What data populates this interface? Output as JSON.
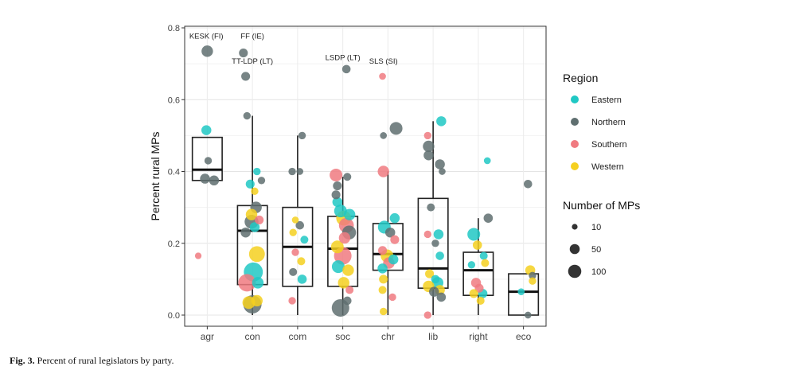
{
  "figure": {
    "caption_label": "Fig. 3.",
    "caption_text": "Percent of rural legislators by party."
  },
  "chart_data": {
    "type": "box+jitter",
    "title": "",
    "xlabel": "",
    "ylabel": "Percent rural MPs",
    "ylim": [
      0,
      0.8
    ],
    "yticks": [
      0.0,
      0.2,
      0.4,
      0.6,
      0.8
    ],
    "ytick_labels": [
      "0.0",
      "0.2",
      "0.4",
      "0.6",
      "0.8"
    ],
    "grid": true,
    "categories": [
      "agr",
      "con",
      "com",
      "soc",
      "chr",
      "lib",
      "right",
      "eco"
    ],
    "colors": {
      "Eastern": "#20c8c4",
      "Northern": "#5f6f70",
      "Southern": "#f07a80",
      "Western": "#f5d020"
    },
    "legend_region": {
      "title": "Region",
      "entries": [
        {
          "label": "Eastern",
          "color": "#20c8c4"
        },
        {
          "label": "Northern",
          "color": "#5f6f70"
        },
        {
          "label": "Southern",
          "color": "#f07a80"
        },
        {
          "label": "Western",
          "color": "#f5d020"
        }
      ]
    },
    "legend_size": {
      "title": "Number of MPs",
      "entries": [
        {
          "label": "10",
          "value": 10
        },
        {
          "label": "50",
          "value": 50
        },
        {
          "label": "100",
          "value": 100
        }
      ]
    },
    "boxes": [
      {
        "category": "agr",
        "q1": 0.375,
        "median": 0.405,
        "q3": 0.495,
        "lo": 0.375,
        "hi": 0.495
      },
      {
        "category": "con",
        "q1": 0.085,
        "median": 0.235,
        "q3": 0.305,
        "lo": 0.0,
        "hi": 0.555
      },
      {
        "category": "com",
        "q1": 0.08,
        "median": 0.19,
        "q3": 0.3,
        "lo": 0.0,
        "hi": 0.5
      },
      {
        "category": "soc",
        "q1": 0.08,
        "median": 0.185,
        "q3": 0.275,
        "lo": 0.0,
        "hi": 0.385
      },
      {
        "category": "chr",
        "q1": 0.125,
        "median": 0.17,
        "q3": 0.255,
        "lo": 0.0,
        "hi": 0.4
      },
      {
        "category": "lib",
        "q1": 0.075,
        "median": 0.13,
        "q3": 0.325,
        "lo": 0.0,
        "hi": 0.54
      },
      {
        "category": "right",
        "q1": 0.055,
        "median": 0.125,
        "q3": 0.175,
        "lo": 0.0,
        "hi": 0.27
      },
      {
        "category": "eco",
        "q1": 0.0,
        "median": 0.065,
        "q3": 0.115,
        "lo": 0.0,
        "hi": 0.115
      }
    ],
    "points": [
      {
        "category": "agr",
        "dx": 0.0,
        "y": 0.735,
        "region": "Northern",
        "mps": 30
      },
      {
        "category": "agr",
        "dx": -0.02,
        "y": 0.515,
        "region": "Eastern",
        "mps": 20
      },
      {
        "category": "agr",
        "dx": 0.02,
        "y": 0.43,
        "region": "Northern",
        "mps": 8
      },
      {
        "category": "agr",
        "dx": -0.05,
        "y": 0.38,
        "region": "Northern",
        "mps": 20
      },
      {
        "category": "agr",
        "dx": 0.15,
        "y": 0.375,
        "region": "Northern",
        "mps": 20
      },
      {
        "category": "agr",
        "dx": -0.2,
        "y": 0.165,
        "region": "Southern",
        "mps": 5
      },
      {
        "category": "con",
        "dx": -0.2,
        "y": 0.73,
        "region": "Northern",
        "mps": 14
      },
      {
        "category": "con",
        "dx": -0.15,
        "y": 0.665,
        "region": "Northern",
        "mps": 14
      },
      {
        "category": "con",
        "dx": -0.12,
        "y": 0.555,
        "region": "Northern",
        "mps": 8
      },
      {
        "category": "con",
        "dx": 0.1,
        "y": 0.4,
        "region": "Eastern",
        "mps": 8
      },
      {
        "category": "con",
        "dx": 0.2,
        "y": 0.375,
        "region": "Northern",
        "mps": 8
      },
      {
        "category": "con",
        "dx": -0.05,
        "y": 0.365,
        "region": "Eastern",
        "mps": 14
      },
      {
        "category": "con",
        "dx": 0.05,
        "y": 0.345,
        "region": "Western",
        "mps": 8
      },
      {
        "category": "con",
        "dx": 0.08,
        "y": 0.3,
        "region": "Northern",
        "mps": 30
      },
      {
        "category": "con",
        "dx": -0.02,
        "y": 0.28,
        "region": "Western",
        "mps": 30
      },
      {
        "category": "con",
        "dx": 0.15,
        "y": 0.265,
        "region": "Southern",
        "mps": 14
      },
      {
        "category": "con",
        "dx": -0.02,
        "y": 0.26,
        "region": "Northern",
        "mps": 50
      },
      {
        "category": "con",
        "dx": 0.05,
        "y": 0.245,
        "region": "Eastern",
        "mps": 20
      },
      {
        "category": "con",
        "dx": -0.15,
        "y": 0.23,
        "region": "Northern",
        "mps": 20
      },
      {
        "category": "con",
        "dx": 0.1,
        "y": 0.17,
        "region": "Western",
        "mps": 70
      },
      {
        "category": "con",
        "dx": 0.02,
        "y": 0.12,
        "region": "Eastern",
        "mps": 110
      },
      {
        "category": "con",
        "dx": -0.12,
        "y": 0.09,
        "region": "Southern",
        "mps": 90
      },
      {
        "category": "con",
        "dx": 0.12,
        "y": 0.09,
        "region": "Eastern",
        "mps": 30
      },
      {
        "category": "con",
        "dx": -0.08,
        "y": 0.035,
        "region": "Western",
        "mps": 40
      },
      {
        "category": "con",
        "dx": 0.0,
        "y": 0.03,
        "region": "Northern",
        "mps": 100
      },
      {
        "category": "con",
        "dx": 0.1,
        "y": 0.04,
        "region": "Western",
        "mps": 30
      },
      {
        "category": "com",
        "dx": 0.1,
        "y": 0.5,
        "region": "Northern",
        "mps": 8
      },
      {
        "category": "com",
        "dx": -0.12,
        "y": 0.4,
        "region": "Northern",
        "mps": 8
      },
      {
        "category": "com",
        "dx": 0.05,
        "y": 0.4,
        "region": "Northern",
        "mps": 6
      },
      {
        "category": "com",
        "dx": -0.05,
        "y": 0.265,
        "region": "Western",
        "mps": 6
      },
      {
        "category": "com",
        "dx": 0.05,
        "y": 0.25,
        "region": "Northern",
        "mps": 12
      },
      {
        "category": "com",
        "dx": -0.1,
        "y": 0.23,
        "region": "Western",
        "mps": 8
      },
      {
        "category": "com",
        "dx": 0.15,
        "y": 0.21,
        "region": "Eastern",
        "mps": 10
      },
      {
        "category": "com",
        "dx": -0.05,
        "y": 0.175,
        "region": "Southern",
        "mps": 8
      },
      {
        "category": "com",
        "dx": 0.08,
        "y": 0.15,
        "region": "Western",
        "mps": 10
      },
      {
        "category": "com",
        "dx": -0.1,
        "y": 0.12,
        "region": "Northern",
        "mps": 10
      },
      {
        "category": "com",
        "dx": 0.1,
        "y": 0.1,
        "region": "Eastern",
        "mps": 16
      },
      {
        "category": "com",
        "dx": -0.12,
        "y": 0.04,
        "region": "Southern",
        "mps": 8
      },
      {
        "category": "soc",
        "dx": 0.1,
        "y": 0.385,
        "region": "Northern",
        "mps": 10
      },
      {
        "category": "soc",
        "dx": -0.15,
        "y": 0.39,
        "region": "Southern",
        "mps": 40
      },
      {
        "category": "soc",
        "dx": -0.12,
        "y": 0.36,
        "region": "Northern",
        "mps": 14
      },
      {
        "category": "soc",
        "dx": -0.15,
        "y": 0.335,
        "region": "Northern",
        "mps": 14
      },
      {
        "category": "soc",
        "dx": -0.12,
        "y": 0.315,
        "region": "Eastern",
        "mps": 20
      },
      {
        "category": "soc",
        "dx": -0.05,
        "y": 0.29,
        "region": "Eastern",
        "mps": 40
      },
      {
        "category": "soc",
        "dx": 0.15,
        "y": 0.28,
        "region": "Eastern",
        "mps": 30
      },
      {
        "category": "soc",
        "dx": 0.02,
        "y": 0.27,
        "region": "Western",
        "mps": 60
      },
      {
        "category": "soc",
        "dx": 0.08,
        "y": 0.25,
        "region": "Southern",
        "mps": 60
      },
      {
        "category": "soc",
        "dx": 0.14,
        "y": 0.23,
        "region": "Northern",
        "mps": 50
      },
      {
        "category": "soc",
        "dx": 0.04,
        "y": 0.215,
        "region": "Southern",
        "mps": 30
      },
      {
        "category": "soc",
        "dx": -0.12,
        "y": 0.19,
        "region": "Western",
        "mps": 40
      },
      {
        "category": "soc",
        "dx": 0.0,
        "y": 0.165,
        "region": "Southern",
        "mps": 90
      },
      {
        "category": "soc",
        "dx": -0.1,
        "y": 0.135,
        "region": "Eastern",
        "mps": 40
      },
      {
        "category": "soc",
        "dx": 0.12,
        "y": 0.125,
        "region": "Western",
        "mps": 30
      },
      {
        "category": "soc",
        "dx": 0.02,
        "y": 0.09,
        "region": "Western",
        "mps": 30
      },
      {
        "category": "soc",
        "dx": 0.15,
        "y": 0.07,
        "region": "Southern",
        "mps": 10
      },
      {
        "category": "soc",
        "dx": 0.1,
        "y": 0.04,
        "region": "Northern",
        "mps": 12
      },
      {
        "category": "soc",
        "dx": -0.05,
        "y": 0.02,
        "region": "Northern",
        "mps": 90
      },
      {
        "category": "soc",
        "dx": 0.08,
        "y": 0.685,
        "region": "Northern",
        "mps": 12
      },
      {
        "category": "chr",
        "dx": -0.12,
        "y": 0.665,
        "region": "Southern",
        "mps": 6
      },
      {
        "category": "chr",
        "dx": -0.1,
        "y": 0.5,
        "region": "Northern",
        "mps": 6
      },
      {
        "category": "chr",
        "dx": 0.18,
        "y": 0.52,
        "region": "Northern",
        "mps": 40
      },
      {
        "category": "chr",
        "dx": -0.1,
        "y": 0.4,
        "region": "Southern",
        "mps": 30
      },
      {
        "category": "chr",
        "dx": 0.15,
        "y": 0.27,
        "region": "Eastern",
        "mps": 20
      },
      {
        "category": "chr",
        "dx": -0.08,
        "y": 0.245,
        "region": "Eastern",
        "mps": 40
      },
      {
        "category": "chr",
        "dx": 0.05,
        "y": 0.23,
        "region": "Northern",
        "mps": 20
      },
      {
        "category": "chr",
        "dx": 0.15,
        "y": 0.21,
        "region": "Southern",
        "mps": 14
      },
      {
        "category": "chr",
        "dx": -0.12,
        "y": 0.18,
        "region": "Southern",
        "mps": 14
      },
      {
        "category": "chr",
        "dx": -0.02,
        "y": 0.165,
        "region": "Western",
        "mps": 40
      },
      {
        "category": "chr",
        "dx": 0.12,
        "y": 0.155,
        "region": "Eastern",
        "mps": 20
      },
      {
        "category": "chr",
        "dx": -0.12,
        "y": 0.13,
        "region": "Eastern",
        "mps": 20
      },
      {
        "category": "chr",
        "dx": 0.02,
        "y": 0.145,
        "region": "Southern",
        "mps": 30
      },
      {
        "category": "chr",
        "dx": -0.1,
        "y": 0.1,
        "region": "Western",
        "mps": 14
      },
      {
        "category": "chr",
        "dx": 0.1,
        "y": 0.05,
        "region": "Southern",
        "mps": 8
      },
      {
        "category": "chr",
        "dx": -0.12,
        "y": 0.07,
        "region": "Western",
        "mps": 10
      },
      {
        "category": "chr",
        "dx": -0.1,
        "y": 0.01,
        "region": "Western",
        "mps": 8
      },
      {
        "category": "lib",
        "dx": 0.18,
        "y": 0.54,
        "region": "Eastern",
        "mps": 20
      },
      {
        "category": "lib",
        "dx": -0.12,
        "y": 0.5,
        "region": "Southern",
        "mps": 8
      },
      {
        "category": "lib",
        "dx": -0.1,
        "y": 0.47,
        "region": "Northern",
        "mps": 30
      },
      {
        "category": "lib",
        "dx": -0.1,
        "y": 0.445,
        "region": "Northern",
        "mps": 20
      },
      {
        "category": "lib",
        "dx": 0.15,
        "y": 0.42,
        "region": "Northern",
        "mps": 20
      },
      {
        "category": "lib",
        "dx": 0.2,
        "y": 0.4,
        "region": "Northern",
        "mps": 6
      },
      {
        "category": "lib",
        "dx": -0.05,
        "y": 0.3,
        "region": "Northern",
        "mps": 10
      },
      {
        "category": "lib",
        "dx": 0.12,
        "y": 0.225,
        "region": "Eastern",
        "mps": 20
      },
      {
        "category": "lib",
        "dx": -0.12,
        "y": 0.225,
        "region": "Southern",
        "mps": 8
      },
      {
        "category": "lib",
        "dx": 0.05,
        "y": 0.2,
        "region": "Northern",
        "mps": 8
      },
      {
        "category": "lib",
        "dx": 0.15,
        "y": 0.165,
        "region": "Eastern",
        "mps": 12
      },
      {
        "category": "lib",
        "dx": -0.08,
        "y": 0.115,
        "region": "Western",
        "mps": 14
      },
      {
        "category": "lib",
        "dx": 0.05,
        "y": 0.1,
        "region": "Eastern",
        "mps": 12
      },
      {
        "category": "lib",
        "dx": 0.1,
        "y": 0.09,
        "region": "Eastern",
        "mps": 30
      },
      {
        "category": "lib",
        "dx": -0.1,
        "y": 0.08,
        "region": "Western",
        "mps": 30
      },
      {
        "category": "lib",
        "dx": 0.15,
        "y": 0.07,
        "region": "Western",
        "mps": 20
      },
      {
        "category": "lib",
        "dx": 0.02,
        "y": 0.065,
        "region": "Northern",
        "mps": 20
      },
      {
        "category": "lib",
        "dx": 0.18,
        "y": 0.05,
        "region": "Northern",
        "mps": 16
      },
      {
        "category": "lib",
        "dx": -0.12,
        "y": 0.0,
        "region": "Southern",
        "mps": 8
      },
      {
        "category": "right",
        "dx": 0.2,
        "y": 0.43,
        "region": "Eastern",
        "mps": 6
      },
      {
        "category": "right",
        "dx": 0.22,
        "y": 0.27,
        "region": "Northern",
        "mps": 16
      },
      {
        "category": "right",
        "dx": -0.1,
        "y": 0.225,
        "region": "Eastern",
        "mps": 40
      },
      {
        "category": "right",
        "dx": -0.02,
        "y": 0.195,
        "region": "Western",
        "mps": 16
      },
      {
        "category": "right",
        "dx": 0.12,
        "y": 0.165,
        "region": "Eastern",
        "mps": 10
      },
      {
        "category": "right",
        "dx": 0.15,
        "y": 0.145,
        "region": "Western",
        "mps": 10
      },
      {
        "category": "right",
        "dx": -0.15,
        "y": 0.14,
        "region": "Eastern",
        "mps": 8
      },
      {
        "category": "right",
        "dx": -0.05,
        "y": 0.09,
        "region": "Southern",
        "mps": 20
      },
      {
        "category": "right",
        "dx": 0.02,
        "y": 0.075,
        "region": "Southern",
        "mps": 14
      },
      {
        "category": "right",
        "dx": 0.1,
        "y": 0.06,
        "region": "Eastern",
        "mps": 16
      },
      {
        "category": "right",
        "dx": -0.1,
        "y": 0.06,
        "region": "Western",
        "mps": 14
      },
      {
        "category": "right",
        "dx": 0.05,
        "y": 0.04,
        "region": "Western",
        "mps": 10
      },
      {
        "category": "eco",
        "dx": 0.1,
        "y": 0.365,
        "region": "Northern",
        "mps": 12
      },
      {
        "category": "eco",
        "dx": 0.15,
        "y": 0.125,
        "region": "Western",
        "mps": 20
      },
      {
        "category": "eco",
        "dx": 0.2,
        "y": 0.11,
        "region": "Northern",
        "mps": 8
      },
      {
        "category": "eco",
        "dx": 0.2,
        "y": 0.095,
        "region": "Western",
        "mps": 8
      },
      {
        "category": "eco",
        "dx": -0.05,
        "y": 0.065,
        "region": "Eastern",
        "mps": 6
      },
      {
        "category": "eco",
        "dx": 0.1,
        "y": 0.0,
        "region": "Northern",
        "mps": 6
      }
    ],
    "annotations": [
      {
        "text": "KESK (FI)",
        "category": "agr",
        "dx": -0.02,
        "y": 0.77
      },
      {
        "text": "FF (IE)",
        "category": "con",
        "dx": 0.0,
        "y": 0.77
      },
      {
        "text": "TT-LDP (LT)",
        "category": "con",
        "dx": 0.0,
        "y": 0.7
      },
      {
        "text": "LSDP (LT)",
        "category": "soc",
        "dx": 0.0,
        "y": 0.71
      },
      {
        "text": "SLS (SI)",
        "category": "chr",
        "dx": -0.1,
        "y": 0.7
      }
    ]
  }
}
